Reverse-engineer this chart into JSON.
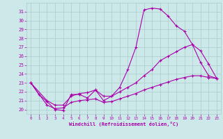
{
  "xlabel": "Windchill (Refroidissement éolien,°C)",
  "bg_color": "#cce8e8",
  "grid_color": "#aacccc",
  "line_color": "#aa00aa",
  "xlim": [
    -0.5,
    23.5
  ],
  "ylim": [
    19.5,
    32.0
  ],
  "xticks": [
    0,
    1,
    2,
    3,
    4,
    5,
    6,
    7,
    8,
    9,
    10,
    11,
    12,
    13,
    14,
    15,
    16,
    17,
    18,
    19,
    20,
    21,
    22,
    23
  ],
  "yticks": [
    20,
    21,
    22,
    23,
    24,
    25,
    26,
    27,
    28,
    29,
    30,
    31
  ],
  "curve1_x": [
    0,
    1,
    2,
    3,
    4,
    5,
    6,
    7,
    8,
    9,
    10,
    11,
    12,
    13,
    14,
    15,
    16,
    17,
    18,
    19,
    20,
    21,
    22,
    23
  ],
  "curve1_y": [
    23.0,
    21.7,
    20.9,
    20.0,
    19.9,
    21.7,
    21.7,
    21.3,
    22.2,
    21.0,
    21.5,
    22.5,
    24.5,
    27.0,
    31.2,
    31.4,
    31.3,
    30.5,
    29.4,
    28.8,
    27.3,
    25.3,
    23.8,
    23.5
  ],
  "curve2_x": [
    0,
    2,
    3,
    4,
    5,
    6,
    7,
    8,
    9,
    10,
    11,
    12,
    13,
    14,
    15,
    16,
    17,
    18,
    19,
    20,
    21,
    22,
    23
  ],
  "curve2_y": [
    23.0,
    21.0,
    20.5,
    20.5,
    21.5,
    21.8,
    21.9,
    22.2,
    21.5,
    21.5,
    22.0,
    22.5,
    23.0,
    23.8,
    24.5,
    25.5,
    26.0,
    26.5,
    27.0,
    27.3,
    26.6,
    25.1,
    23.5
  ],
  "curve3_x": [
    0,
    2,
    3,
    4,
    5,
    6,
    7,
    8,
    9,
    10,
    11,
    12,
    13,
    14,
    15,
    16,
    17,
    18,
    19,
    20,
    21,
    22,
    23
  ],
  "curve3_y": [
    23.0,
    20.5,
    20.1,
    20.2,
    20.8,
    21.0,
    21.1,
    21.2,
    20.8,
    20.9,
    21.2,
    21.5,
    21.8,
    22.2,
    22.5,
    22.8,
    23.1,
    23.4,
    23.6,
    23.8,
    23.8,
    23.6,
    23.5
  ]
}
